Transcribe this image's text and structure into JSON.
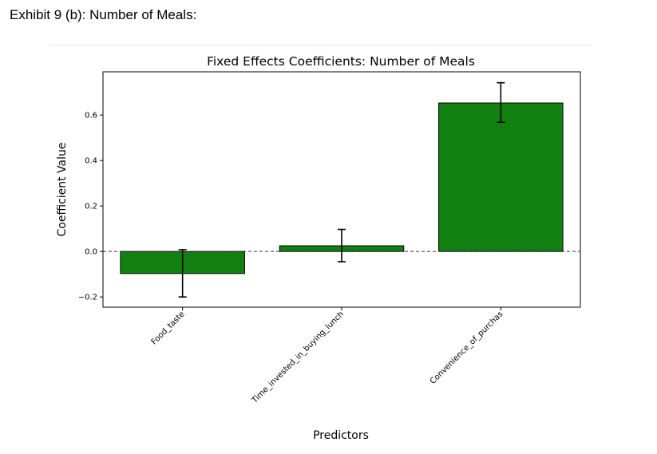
{
  "exhibit": {
    "title": "Exhibit 9 (b): Number of Meals:"
  },
  "chart_data": {
    "type": "bar",
    "title": "Fixed Effects Coefficients: Number of Meals",
    "xlabel": "Predictors",
    "ylabel": "Coefficient Value",
    "categories": [
      "Food_taste",
      "Time_invested_in_buying_lunch",
      "Convenience_of_purchas"
    ],
    "values": [
      -0.097,
      0.025,
      0.653
    ],
    "error_low": [
      -0.2,
      -0.045,
      0.568
    ],
    "error_high": [
      0.008,
      0.097,
      0.742
    ],
    "ylim": [
      -0.245,
      0.79
    ],
    "yticks": [
      -0.2,
      0.0,
      0.2,
      0.4,
      0.6
    ],
    "ytick_labels": [
      "−0.2",
      "0.0",
      "0.2",
      "0.4",
      "0.6"
    ],
    "reference_line": 0,
    "bar_color": "#118011",
    "grid": false
  }
}
